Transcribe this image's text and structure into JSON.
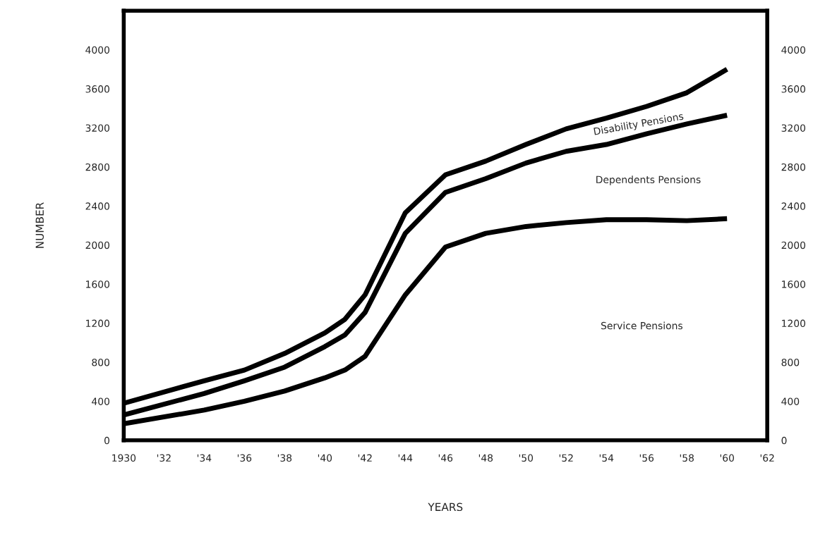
{
  "chart_data": {
    "type": "line",
    "xlabel": "YEARS",
    "ylabel": "NUMBER",
    "x": [
      1930,
      1934,
      1936,
      1938,
      1940,
      1941,
      1942,
      1944,
      1946,
      1948,
      1950,
      1952,
      1954,
      1956,
      1958,
      1960
    ],
    "series": [
      {
        "color": "#000000",
        "values": [
          380,
          610,
          720,
          890,
          1100,
          1240,
          1490,
          2330,
          2720,
          2860,
          3030,
          3190,
          3300,
          3420,
          3560,
          3800
        ]
      },
      {
        "color": "#000000",
        "values": [
          260,
          480,
          610,
          750,
          960,
          1080,
          1310,
          2120,
          2540,
          2680,
          2840,
          2960,
          3030,
          3140,
          3240,
          3330
        ]
      },
      {
        "color": "#000000",
        "values": [
          170,
          310,
          400,
          505,
          640,
          720,
          860,
          1490,
          1980,
          2120,
          2190,
          2230,
          2260,
          2260,
          2250,
          2270
        ]
      }
    ],
    "annotations": [
      "Disability Pensions",
      "Dependents Pensions",
      "Service Pensions"
    ],
    "xlim": [
      1930,
      1962
    ],
    "xticks": [
      {
        "value": 1930,
        "label": "1930"
      },
      {
        "value": 1932,
        "label": "'32"
      },
      {
        "value": 1934,
        "label": "'34"
      },
      {
        "value": 1936,
        "label": "'36"
      },
      {
        "value": 1938,
        "label": "'38"
      },
      {
        "value": 1940,
        "label": "'40"
      },
      {
        "value": 1942,
        "label": "'42"
      },
      {
        "value": 1944,
        "label": "'44"
      },
      {
        "value": 1946,
        "label": "'46"
      },
      {
        "value": 1948,
        "label": "'48"
      },
      {
        "value": 1950,
        "label": "'50"
      },
      {
        "value": 1952,
        "label": "'52"
      },
      {
        "value": 1954,
        "label": "'54"
      },
      {
        "value": 1956,
        "label": "'56"
      },
      {
        "value": 1958,
        "label": "'58"
      },
      {
        "value": 1960,
        "label": "'60"
      },
      {
        "value": 1962,
        "label": "'62"
      }
    ],
    "ylim": [
      0,
      4400
    ],
    "yticks": [
      0,
      400,
      800,
      1200,
      1600,
      2000,
      2400,
      2800,
      3200,
      3600,
      4000
    ],
    "y2lim": [
      0,
      4400
    ],
    "y2ticks": [
      0,
      400,
      800,
      1200,
      1600,
      2000,
      2400,
      2800,
      3200,
      3600,
      4000
    ],
    "grid": false,
    "legend": false,
    "marker": "none",
    "line_style": "solid"
  }
}
